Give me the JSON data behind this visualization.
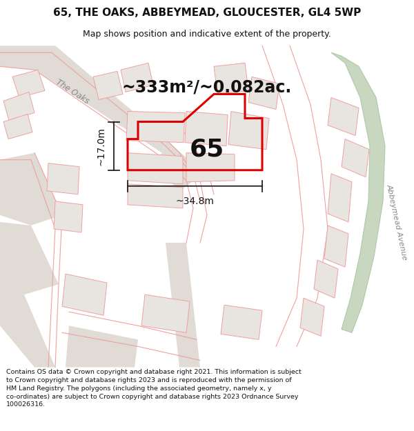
{
  "title_line1": "65, THE OAKS, ABBEYMEAD, GLOUCESTER, GL4 5WP",
  "title_line2": "Map shows position and indicative extent of the property.",
  "area_text": "~333m²/~0.082ac.",
  "label_65": "65",
  "dim_width": "~34.8m",
  "dim_height": "~17.0m",
  "footer": "Contains OS data © Crown copyright and database right 2021. This information is subject to Crown copyright and database rights 2023 and is reproduced with the permission of HM Land Registry. The polygons (including the associated geometry, namely x, y co-ordinates) are subject to Crown copyright and database rights 2023 Ordnance Survey 100026316.",
  "bg_color": "#ffffff",
  "map_bg": "#f7f5f2",
  "road_color": "#d8d4cc",
  "road_fill": "#e0dbd4",
  "plot_fill": "#ffffff",
  "plot_border": "#dd0000",
  "building_fill": "#e8e4df",
  "building_border": "#f0a0a0",
  "road_outline_color": "#f0a0a0",
  "green_fill": "#c8d8c0",
  "green_border": "#b0c8a8",
  "road_label_color": "#888888",
  "text_color": "#111111",
  "footer_color": "#111111",
  "title_bg": "#ffffff",
  "footer_bg": "#ffffff"
}
